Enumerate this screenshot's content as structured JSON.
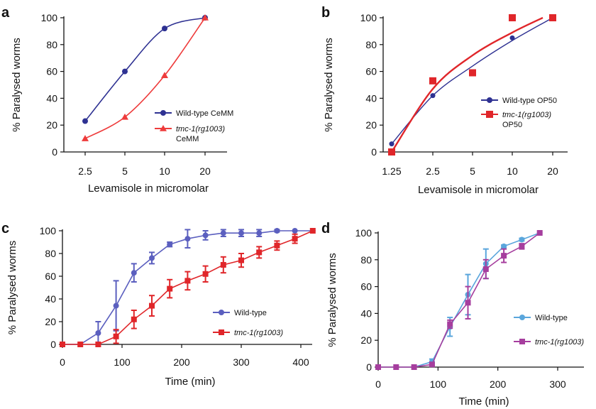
{
  "colors": {
    "navy": "#2e3192",
    "red": "#ee3b3b",
    "bright_red": "#e0262a",
    "periwinkle": "#5b5fbf",
    "light_blue": "#5aa6dc",
    "magenta": "#a63e9e"
  },
  "chart_data": [
    {
      "panel": "a",
      "type": "line",
      "ylabel": "% Paralysed worms",
      "xlabel": "Levamisole in micromolar",
      "x_scale": "categorical",
      "categories": [
        "2.5",
        "5",
        "10",
        "20"
      ],
      "ylim": [
        0,
        100
      ],
      "yticks": [
        "0",
        "20",
        "40",
        "60",
        "80",
        "100"
      ],
      "legend_position": "lower-right",
      "series": [
        {
          "name": "Wild-type CeMM",
          "name_line2": "",
          "italic": false,
          "marker": "circle",
          "color_key": "navy",
          "values": [
            23,
            60,
            92,
            100
          ]
        },
        {
          "name": "tmc-1(rg1003)",
          "name_line2": "CeMM",
          "italic": true,
          "marker": "triangle",
          "color_key": "red",
          "values": [
            10,
            26,
            57,
            100
          ]
        }
      ]
    },
    {
      "panel": "b",
      "type": "scatter",
      "ylabel": "% Paralysed worms",
      "xlabel": "Levamisole in micromolar",
      "x_scale": "categorical",
      "categories": [
        "1.25",
        "2.5",
        "5",
        "10",
        "20"
      ],
      "ylim": [
        0,
        100
      ],
      "yticks": [
        "0",
        "20",
        "40",
        "60",
        "80",
        "100"
      ],
      "legend_position": "right",
      "series": [
        {
          "name": "Wild-type OP50",
          "name_line2": "",
          "italic": false,
          "marker": "circle",
          "color_key": "navy",
          "values": [
            6,
            42,
            null,
            85,
            100
          ]
        },
        {
          "name": "tmc-1(rg1003)",
          "name_line2": "OP50",
          "italic": true,
          "marker": "square",
          "color_key": "bright_red",
          "values": [
            0,
            53,
            59,
            100,
            100
          ]
        }
      ]
    },
    {
      "panel": "c",
      "type": "line",
      "ylabel": "% Paralysed worms",
      "xlabel": "Time (min)",
      "xlim": [
        0,
        440
      ],
      "xticks": [
        "0",
        "100",
        "200",
        "300",
        "400"
      ],
      "ylim": [
        0,
        100
      ],
      "yticks": [
        "0",
        "20",
        "40",
        "60",
        "80",
        "100"
      ],
      "legend_position": "lower-right",
      "series": [
        {
          "name": "Wild-type",
          "name_line2": "",
          "italic": false,
          "marker": "circle",
          "color_key": "periwinkle",
          "x": [
            0,
            30,
            60,
            90,
            120,
            150,
            180,
            210,
            240,
            270,
            300,
            330,
            360,
            390,
            420
          ],
          "y": [
            0,
            0,
            10,
            34,
            63,
            76,
            88,
            93,
            96,
            98,
            98,
            98,
            100,
            100,
            100
          ],
          "err": [
            0,
            0,
            10,
            22,
            8,
            5,
            2,
            8,
            4,
            3,
            3,
            3,
            1,
            0,
            0
          ]
        },
        {
          "name": "tmc-1(rg1003)",
          "name_line2": "",
          "italic": true,
          "marker": "square",
          "color_key": "bright_red",
          "x": [
            0,
            30,
            60,
            90,
            120,
            150,
            180,
            210,
            240,
            270,
            300,
            330,
            360,
            390,
            420
          ],
          "y": [
            0,
            0,
            0,
            7,
            22,
            34,
            49,
            56,
            62,
            70,
            74,
            81,
            87,
            93,
            100
          ],
          "err": [
            0,
            0,
            0,
            6,
            8,
            9,
            8,
            8,
            7,
            7,
            6,
            5,
            4,
            4,
            0
          ]
        }
      ]
    },
    {
      "panel": "d",
      "type": "line",
      "ylabel": "% Paralysed worms",
      "xlabel": "Time (min)",
      "xlim": [
        0,
        300
      ],
      "xticks": [
        "0",
        "100",
        "200",
        "300"
      ],
      "ylim": [
        0,
        100
      ],
      "yticks": [
        "0",
        "20",
        "40",
        "60",
        "80",
        "100"
      ],
      "legend_position": "lower-right",
      "series": [
        {
          "name": "Wild-type",
          "name_line2": "",
          "italic": false,
          "marker": "circle",
          "color_key": "light_blue",
          "x": [
            0,
            30,
            60,
            90,
            120,
            150,
            180,
            210,
            240,
            270
          ],
          "y": [
            0,
            0,
            0,
            4,
            30,
            54,
            77,
            90,
            95,
            100
          ],
          "err": [
            0,
            0,
            0,
            2,
            7,
            15,
            11,
            1,
            1,
            0
          ]
        },
        {
          "name": "tmc-1(rg1003)",
          "name_line2": "",
          "italic": true,
          "marker": "square",
          "color_key": "magenta",
          "x": [
            0,
            30,
            60,
            90,
            120,
            150,
            180,
            210,
            240,
            270
          ],
          "y": [
            0,
            0,
            0,
            2,
            32,
            48,
            73,
            83,
            90,
            100
          ],
          "err": [
            0,
            0,
            0,
            1,
            3,
            12,
            7,
            5,
            2,
            0
          ]
        }
      ]
    }
  ]
}
